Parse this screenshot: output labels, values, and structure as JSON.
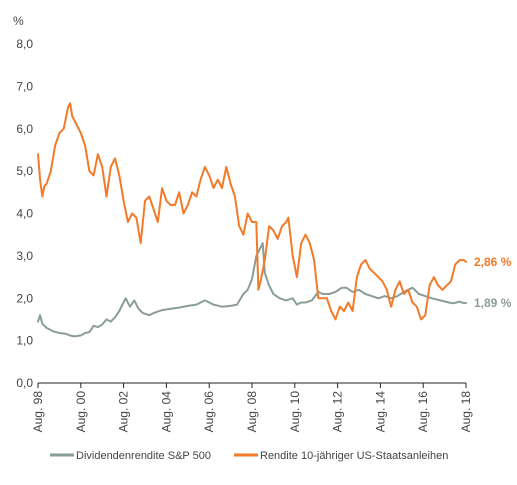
{
  "chart_data": {
    "type": "line",
    "ylabel": "%",
    "ylim": [
      0,
      8
    ],
    "yticks": [
      "0,0",
      "1,0",
      "2,0",
      "3,0",
      "4,0",
      "5,0",
      "6,0",
      "7,0",
      "8,0"
    ],
    "ytick_values": [
      0,
      1,
      2,
      3,
      4,
      5,
      6,
      7,
      8
    ],
    "xlim": [
      1998.6,
      2018.6
    ],
    "xticks": [
      "Aug. 98",
      "Aug. 00",
      "Aug. 02",
      "Aug. 04",
      "Aug. 06",
      "Aug. 08",
      "Aug. 10",
      "Aug. 12",
      "Aug. 14",
      "Aug. 16",
      "Aug. 18"
    ],
    "xtick_values": [
      1998.6,
      2000.6,
      2002.6,
      2004.6,
      2006.6,
      2008.6,
      2010.6,
      2012.6,
      2014.6,
      2016.6,
      2018.6
    ],
    "grid": false,
    "legend_position": "bottom",
    "series": [
      {
        "name": "Dividendenrendite S&P 500",
        "color": "#8a9e98",
        "end_label": "1,89 %",
        "points": [
          [
            1998.6,
            1.45
          ],
          [
            1998.7,
            1.6
          ],
          [
            1998.8,
            1.4
          ],
          [
            1999.0,
            1.3
          ],
          [
            1999.3,
            1.22
          ],
          [
            1999.6,
            1.18
          ],
          [
            1999.9,
            1.16
          ],
          [
            2000.1,
            1.12
          ],
          [
            2000.3,
            1.1
          ],
          [
            2000.6,
            1.12
          ],
          [
            2000.8,
            1.18
          ],
          [
            2001.0,
            1.2
          ],
          [
            2001.2,
            1.35
          ],
          [
            2001.4,
            1.32
          ],
          [
            2001.6,
            1.38
          ],
          [
            2001.8,
            1.5
          ],
          [
            2002.0,
            1.45
          ],
          [
            2002.2,
            1.55
          ],
          [
            2002.4,
            1.7
          ],
          [
            2002.55,
            1.85
          ],
          [
            2002.7,
            2.0
          ],
          [
            2002.9,
            1.8
          ],
          [
            2003.1,
            1.95
          ],
          [
            2003.3,
            1.75
          ],
          [
            2003.5,
            1.65
          ],
          [
            2003.8,
            1.6
          ],
          [
            2004.0,
            1.65
          ],
          [
            2004.4,
            1.72
          ],
          [
            2004.8,
            1.75
          ],
          [
            2005.2,
            1.78
          ],
          [
            2005.6,
            1.82
          ],
          [
            2006.0,
            1.85
          ],
          [
            2006.4,
            1.95
          ],
          [
            2006.8,
            1.85
          ],
          [
            2007.2,
            1.8
          ],
          [
            2007.6,
            1.82
          ],
          [
            2007.9,
            1.85
          ],
          [
            2008.2,
            2.1
          ],
          [
            2008.4,
            2.2
          ],
          [
            2008.6,
            2.45
          ],
          [
            2008.8,
            3.0
          ],
          [
            2009.0,
            3.2
          ],
          [
            2009.1,
            3.3
          ],
          [
            2009.2,
            2.6
          ],
          [
            2009.4,
            2.3
          ],
          [
            2009.6,
            2.1
          ],
          [
            2009.9,
            2.0
          ],
          [
            2010.2,
            1.95
          ],
          [
            2010.5,
            2.0
          ],
          [
            2010.7,
            1.85
          ],
          [
            2010.9,
            1.9
          ],
          [
            2011.1,
            1.9
          ],
          [
            2011.4,
            1.95
          ],
          [
            2011.7,
            2.15
          ],
          [
            2011.9,
            2.1
          ],
          [
            2012.2,
            2.1
          ],
          [
            2012.5,
            2.15
          ],
          [
            2012.8,
            2.25
          ],
          [
            2013.0,
            2.25
          ],
          [
            2013.3,
            2.15
          ],
          [
            2013.6,
            2.2
          ],
          [
            2013.9,
            2.1
          ],
          [
            2014.2,
            2.05
          ],
          [
            2014.5,
            2.0
          ],
          [
            2014.8,
            2.05
          ],
          [
            2015.1,
            2.0
          ],
          [
            2015.4,
            2.05
          ],
          [
            2015.7,
            2.15
          ],
          [
            2015.9,
            2.2
          ],
          [
            2016.1,
            2.25
          ],
          [
            2016.4,
            2.1
          ],
          [
            2016.7,
            2.05
          ],
          [
            2017.0,
            2.0
          ],
          [
            2017.4,
            1.95
          ],
          [
            2017.8,
            1.9
          ],
          [
            2018.0,
            1.88
          ],
          [
            2018.3,
            1.92
          ],
          [
            2018.5,
            1.88
          ],
          [
            2018.6,
            1.89
          ]
        ]
      },
      {
        "name": "Rendite 10-jähriger US-Staatsanleihen",
        "color": "#f27a28",
        "end_label": "2,86 %",
        "points": [
          [
            1998.6,
            5.4
          ],
          [
            1998.7,
            4.8
          ],
          [
            1998.8,
            4.4
          ],
          [
            1998.9,
            4.65
          ],
          [
            1999.0,
            4.7
          ],
          [
            1999.2,
            5.0
          ],
          [
            1999.4,
            5.6
          ],
          [
            1999.6,
            5.9
          ],
          [
            1999.8,
            6.0
          ],
          [
            2000.0,
            6.5
          ],
          [
            2000.1,
            6.6
          ],
          [
            2000.2,
            6.3
          ],
          [
            2000.4,
            6.1
          ],
          [
            2000.6,
            5.9
          ],
          [
            2000.8,
            5.6
          ],
          [
            2001.0,
            5.0
          ],
          [
            2001.2,
            4.9
          ],
          [
            2001.4,
            5.4
          ],
          [
            2001.6,
            5.1
          ],
          [
            2001.8,
            4.4
          ],
          [
            2002.0,
            5.1
          ],
          [
            2002.2,
            5.3
          ],
          [
            2002.4,
            4.9
          ],
          [
            2002.6,
            4.3
          ],
          [
            2002.8,
            3.8
          ],
          [
            2003.0,
            4.0
          ],
          [
            2003.2,
            3.9
          ],
          [
            2003.4,
            3.3
          ],
          [
            2003.6,
            4.3
          ],
          [
            2003.8,
            4.4
          ],
          [
            2004.0,
            4.1
          ],
          [
            2004.2,
            3.8
          ],
          [
            2004.4,
            4.6
          ],
          [
            2004.6,
            4.3
          ],
          [
            2004.8,
            4.2
          ],
          [
            2005.0,
            4.2
          ],
          [
            2005.2,
            4.5
          ],
          [
            2005.4,
            4.0
          ],
          [
            2005.6,
            4.2
          ],
          [
            2005.8,
            4.5
          ],
          [
            2006.0,
            4.4
          ],
          [
            2006.2,
            4.8
          ],
          [
            2006.4,
            5.1
          ],
          [
            2006.6,
            4.9
          ],
          [
            2006.8,
            4.6
          ],
          [
            2007.0,
            4.8
          ],
          [
            2007.2,
            4.6
          ],
          [
            2007.4,
            5.1
          ],
          [
            2007.6,
            4.7
          ],
          [
            2007.8,
            4.4
          ],
          [
            2008.0,
            3.7
          ],
          [
            2008.2,
            3.5
          ],
          [
            2008.4,
            4.0
          ],
          [
            2008.6,
            3.8
          ],
          [
            2008.8,
            3.8
          ],
          [
            2008.9,
            2.2
          ],
          [
            2009.0,
            2.4
          ],
          [
            2009.2,
            2.9
          ],
          [
            2009.4,
            3.7
          ],
          [
            2009.6,
            3.6
          ],
          [
            2009.8,
            3.4
          ],
          [
            2010.0,
            3.7
          ],
          [
            2010.2,
            3.8
          ],
          [
            2010.3,
            3.9
          ],
          [
            2010.5,
            3.0
          ],
          [
            2010.7,
            2.5
          ],
          [
            2010.9,
            3.3
          ],
          [
            2011.1,
            3.5
          ],
          [
            2011.3,
            3.3
          ],
          [
            2011.5,
            2.9
          ],
          [
            2011.7,
            2.0
          ],
          [
            2011.9,
            2.0
          ],
          [
            2012.1,
            2.0
          ],
          [
            2012.3,
            1.7
          ],
          [
            2012.5,
            1.5
          ],
          [
            2012.7,
            1.8
          ],
          [
            2012.9,
            1.7
          ],
          [
            2013.1,
            1.9
          ],
          [
            2013.3,
            1.7
          ],
          [
            2013.5,
            2.5
          ],
          [
            2013.7,
            2.8
          ],
          [
            2013.9,
            2.9
          ],
          [
            2014.1,
            2.7
          ],
          [
            2014.3,
            2.6
          ],
          [
            2014.5,
            2.5
          ],
          [
            2014.7,
            2.4
          ],
          [
            2014.9,
            2.2
          ],
          [
            2015.1,
            1.8
          ],
          [
            2015.3,
            2.2
          ],
          [
            2015.5,
            2.4
          ],
          [
            2015.7,
            2.1
          ],
          [
            2015.9,
            2.2
          ],
          [
            2016.1,
            1.9
          ],
          [
            2016.3,
            1.8
          ],
          [
            2016.5,
            1.5
          ],
          [
            2016.7,
            1.6
          ],
          [
            2016.9,
            2.3
          ],
          [
            2017.1,
            2.5
          ],
          [
            2017.3,
            2.3
          ],
          [
            2017.5,
            2.2
          ],
          [
            2017.7,
            2.3
          ],
          [
            2017.9,
            2.4
          ],
          [
            2018.1,
            2.8
          ],
          [
            2018.3,
            2.9
          ],
          [
            2018.5,
            2.9
          ],
          [
            2018.6,
            2.86
          ]
        ]
      }
    ]
  }
}
